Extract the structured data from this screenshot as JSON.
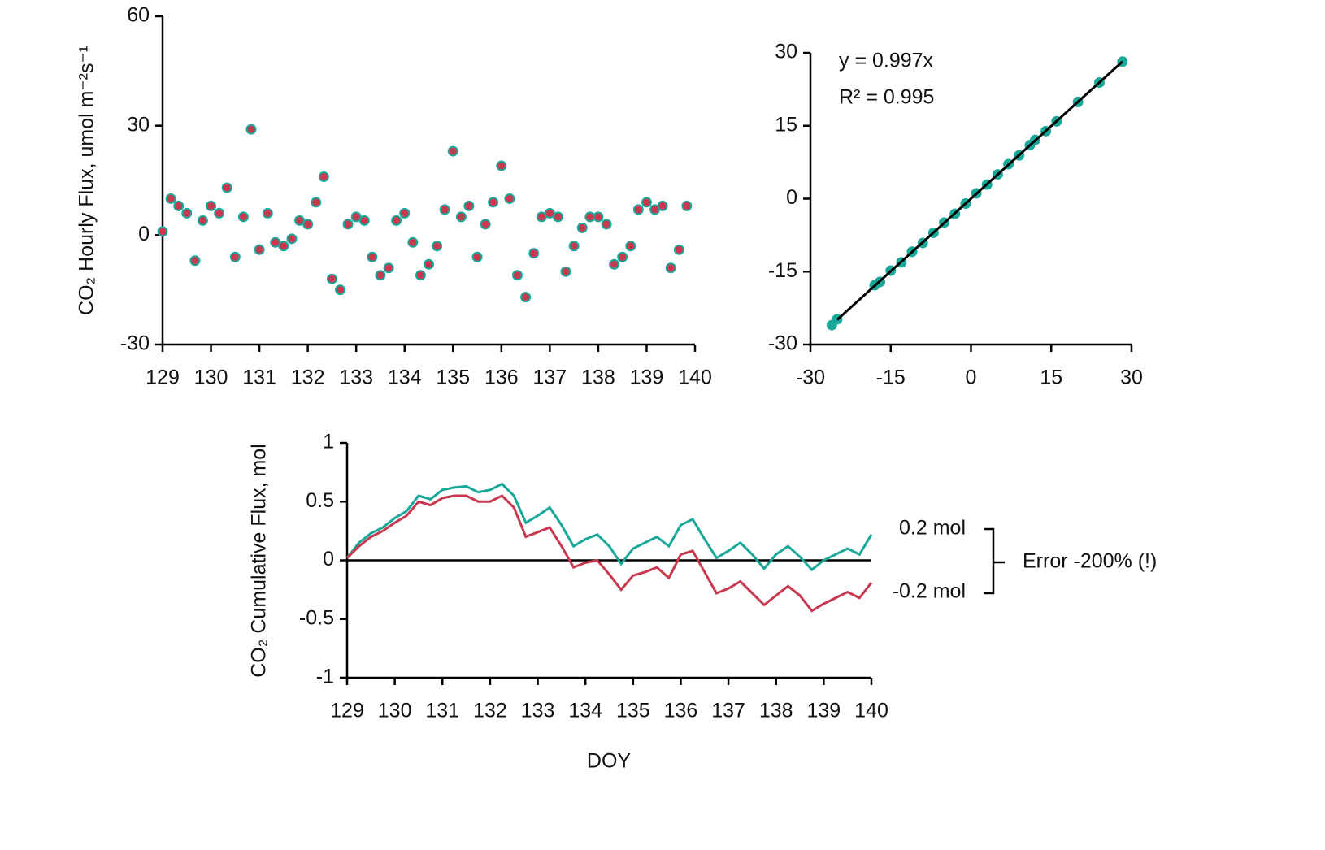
{
  "chart_data": [
    {
      "type": "scatter",
      "y_label": "CO₂ Hourly Flux, umol m⁻²s⁻¹",
      "x": [
        129.0,
        129.17,
        129.33,
        129.5,
        129.67,
        129.83,
        130.0,
        130.17,
        130.33,
        130.5,
        130.67,
        130.83,
        131.0,
        131.17,
        131.33,
        131.5,
        131.67,
        131.83,
        132.0,
        132.17,
        132.33,
        132.5,
        132.67,
        132.83,
        133.0,
        133.17,
        133.33,
        133.5,
        133.67,
        133.83,
        134.0,
        134.17,
        134.33,
        134.5,
        134.67,
        134.83,
        135.0,
        135.17,
        135.33,
        135.5,
        135.67,
        135.83,
        136.0,
        136.17,
        136.33,
        136.5,
        136.67,
        136.83,
        137.0,
        137.17,
        137.33,
        137.5,
        137.67,
        137.83,
        138.0,
        138.17,
        138.33,
        138.5,
        138.67,
        138.83,
        139.0,
        139.17,
        139.33,
        139.5,
        139.67,
        139.83
      ],
      "series": [
        {
          "color": "#1aa89a",
          "values": [
            1,
            10,
            8,
            6,
            -7,
            4,
            8,
            6,
            13,
            -6,
            5,
            29,
            -4,
            6,
            -2,
            -3,
            -1,
            4,
            3,
            9,
            16,
            -12,
            -15,
            3,
            5,
            4,
            -6,
            -11,
            -9,
            4,
            6,
            -2,
            -11,
            -8,
            -3,
            7,
            23,
            5,
            8,
            -6,
            3,
            9,
            19,
            10,
            -11,
            -17,
            -5,
            5,
            6,
            5,
            -10,
            -3,
            2,
            5,
            5,
            3,
            -8,
            -6,
            -3,
            7,
            9,
            7,
            8,
            -9,
            -4,
            8
          ]
        },
        {
          "color": "#c8384f",
          "values": [
            1,
            10,
            8,
            6,
            -7,
            4,
            8,
            6,
            13,
            -6,
            5,
            29,
            -4,
            6,
            -2,
            -3,
            -1,
            4,
            3,
            9,
            16,
            -12,
            -15,
            3,
            5,
            4,
            -6,
            -11,
            -9,
            4,
            6,
            -2,
            -11,
            -8,
            -3,
            7,
            23,
            5,
            8,
            -6,
            3,
            9,
            19,
            10,
            -11,
            -17,
            -5,
            5,
            6,
            5,
            -10,
            -3,
            2,
            5,
            5,
            3,
            -8,
            -6,
            -3,
            7,
            9,
            7,
            8,
            -9,
            -4,
            8
          ]
        }
      ],
      "xlim": [
        129,
        140
      ],
      "xticks": [
        129,
        130,
        131,
        132,
        133,
        134,
        135,
        136,
        137,
        138,
        139,
        140
      ],
      "ylim": [
        -30,
        60
      ],
      "yticks": [
        -30,
        0,
        30,
        60
      ]
    },
    {
      "type": "scatter",
      "annotations": [
        "y = 0.997x",
        "R² = 0.995"
      ],
      "x": [
        -26,
        -25,
        -18,
        -17,
        -15,
        -13,
        -11,
        -9,
        -7,
        -5,
        -3,
        -1,
        1,
        3,
        5,
        7,
        9,
        11,
        12,
        14,
        16,
        20,
        24,
        28.3
      ],
      "series": [
        {
          "color": "#1aa89a",
          "values": [
            -26,
            -24.8,
            -17.8,
            -17.1,
            -14.8,
            -13.1,
            -10.9,
            -9.1,
            -7,
            -4.9,
            -3.1,
            -1,
            1.1,
            2.9,
            5,
            7.1,
            8.9,
            11,
            12.1,
            13.9,
            15.9,
            19.9,
            23.9,
            28.2
          ]
        }
      ],
      "fit": {
        "color": "#000000",
        "x": [
          -25,
          28.3
        ],
        "values": [
          -24.9,
          28.2
        ]
      },
      "xlim": [
        -30,
        30
      ],
      "xticks": [
        -30,
        -15,
        0,
        15,
        30
      ],
      "ylim": [
        -30,
        30
      ],
      "yticks": [
        -30,
        -15,
        0,
        15,
        30
      ]
    },
    {
      "type": "line",
      "y_label": "CO₂ Cumulative Flux, mol",
      "x_label": "DOY",
      "annotations": [
        "0.2 mol",
        "-0.2 mol",
        "Error -200% (!)"
      ],
      "zero_line": true,
      "x": [
        129,
        129.25,
        129.5,
        129.75,
        130,
        130.25,
        130.5,
        130.75,
        131,
        131.25,
        131.5,
        131.75,
        132,
        132.25,
        132.5,
        132.75,
        133,
        133.25,
        133.5,
        133.75,
        134,
        134.25,
        134.5,
        134.75,
        135,
        135.25,
        135.5,
        135.75,
        136,
        136.25,
        136.5,
        136.75,
        137,
        137.25,
        137.5,
        137.75,
        138,
        138.25,
        138.5,
        138.75,
        139,
        139.25,
        139.5,
        139.75,
        140
      ],
      "series": [
        {
          "color": "#1aa89a",
          "values": [
            0.02,
            0.15,
            0.23,
            0.28,
            0.36,
            0.42,
            0.55,
            0.52,
            0.6,
            0.62,
            0.63,
            0.58,
            0.6,
            0.65,
            0.55,
            0.32,
            0.38,
            0.45,
            0.3,
            0.12,
            0.18,
            0.22,
            0.12,
            -0.03,
            0.1,
            0.15,
            0.2,
            0.12,
            0.3,
            0.35,
            0.18,
            0.02,
            0.08,
            0.15,
            0.05,
            -0.07,
            0.05,
            0.12,
            0.03,
            -0.08,
            0.0,
            0.05,
            0.1,
            0.05,
            0.22
          ]
        },
        {
          "color": "#c8384f",
          "values": [
            0.02,
            0.12,
            0.2,
            0.25,
            0.32,
            0.38,
            0.5,
            0.47,
            0.53,
            0.55,
            0.55,
            0.5,
            0.5,
            0.55,
            0.45,
            0.2,
            0.24,
            0.28,
            0.12,
            -0.06,
            -0.02,
            0.0,
            -0.12,
            -0.25,
            -0.13,
            -0.1,
            -0.06,
            -0.15,
            0.05,
            0.08,
            -0.1,
            -0.28,
            -0.24,
            -0.18,
            -0.28,
            -0.38,
            -0.3,
            -0.22,
            -0.3,
            -0.43,
            -0.37,
            -0.32,
            -0.27,
            -0.32,
            -0.19
          ]
        }
      ],
      "xlim": [
        129,
        140
      ],
      "xticks": [
        129,
        130,
        131,
        132,
        133,
        134,
        135,
        136,
        137,
        138,
        139,
        140
      ],
      "ylim": [
        -1,
        1
      ],
      "yticks": [
        -1,
        -0.5,
        0,
        0.5,
        1
      ]
    }
  ]
}
